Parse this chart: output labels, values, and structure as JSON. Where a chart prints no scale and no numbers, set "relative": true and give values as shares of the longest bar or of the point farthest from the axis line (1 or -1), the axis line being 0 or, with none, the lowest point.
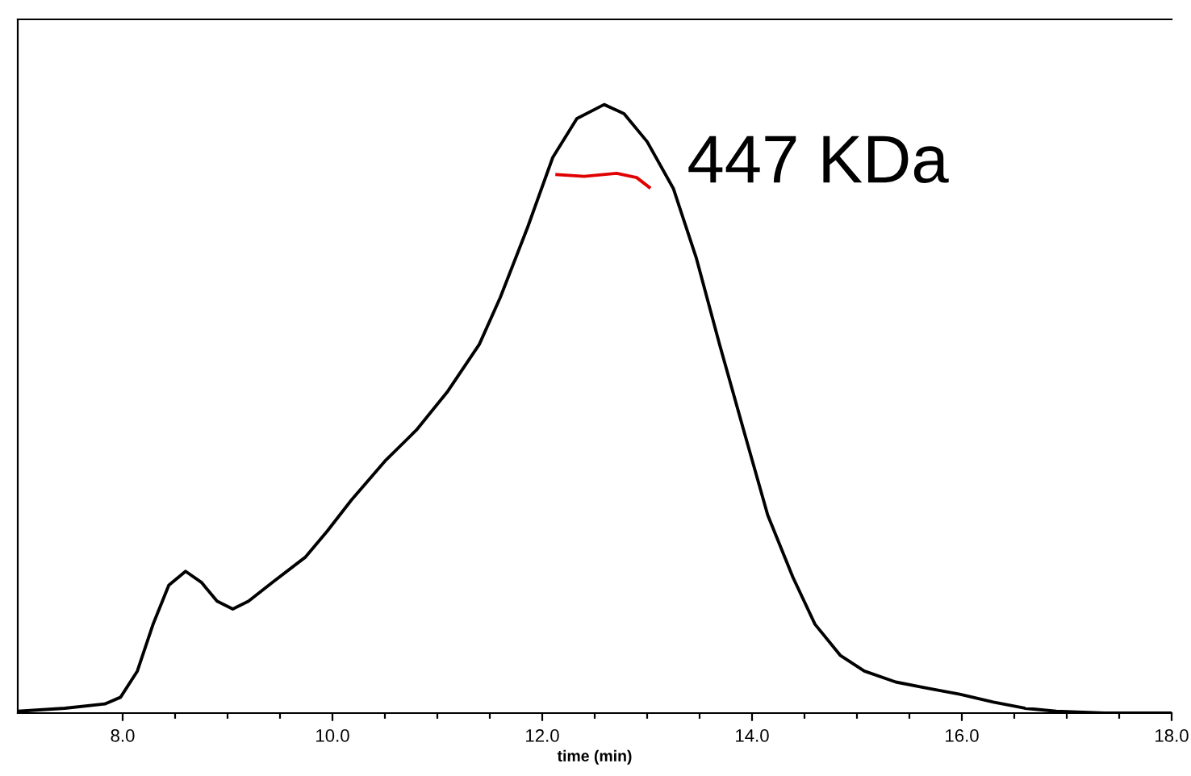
{
  "chart_data": {
    "type": "line",
    "relative": true,
    "xlabel": "time (min)",
    "xlim": [
      7.0,
      18.0
    ],
    "xticks": [
      {
        "value": 8.0,
        "label": "8.0"
      },
      {
        "value": 8.5,
        "label": null
      },
      {
        "value": 9.0,
        "label": null
      },
      {
        "value": 9.5,
        "label": null
      },
      {
        "value": 10.0,
        "label": "10.0"
      },
      {
        "value": 10.5,
        "label": null
      },
      {
        "value": 11.0,
        "label": null
      },
      {
        "value": 11.5,
        "label": null
      },
      {
        "value": 12.0,
        "label": "12.0"
      },
      {
        "value": 12.5,
        "label": null
      },
      {
        "value": 13.0,
        "label": null
      },
      {
        "value": 13.5,
        "label": null
      },
      {
        "value": 14.0,
        "label": "14.0"
      },
      {
        "value": 14.5,
        "label": null
      },
      {
        "value": 15.0,
        "label": null
      },
      {
        "value": 15.5,
        "label": null
      },
      {
        "value": 16.0,
        "label": "16.0"
      },
      {
        "value": 16.5,
        "label": null
      },
      {
        "value": 17.0,
        "label": null
      },
      {
        "value": 17.5,
        "label": null
      },
      {
        "value": 18.0,
        "label": "18.0"
      }
    ],
    "series": [
      {
        "color": "#000000",
        "x": [
          7.0,
          7.45,
          7.83,
          7.98,
          8.14,
          8.29,
          8.44,
          8.6,
          8.75,
          8.9,
          9.05,
          9.2,
          9.43,
          9.74,
          9.95,
          10.18,
          10.5,
          10.8,
          11.1,
          11.4,
          11.6,
          11.86,
          12.1,
          12.33,
          12.59,
          12.78,
          13.0,
          13.25,
          13.47,
          13.69,
          13.92,
          14.15,
          14.39,
          14.6,
          14.84,
          15.07,
          15.37,
          15.67,
          15.98,
          16.3,
          16.6,
          16.9,
          17.36,
          18.0
        ],
        "values": [
          0.003,
          0.008,
          0.015,
          0.026,
          0.069,
          0.146,
          0.21,
          0.233,
          0.215,
          0.184,
          0.171,
          0.184,
          0.215,
          0.256,
          0.299,
          0.35,
          0.414,
          0.465,
          0.529,
          0.606,
          0.683,
          0.798,
          0.913,
          0.977,
          1,
          0.985,
          0.939,
          0.862,
          0.747,
          0.606,
          0.465,
          0.325,
          0.223,
          0.146,
          0.095,
          0.069,
          0.051,
          0.041,
          0.031,
          0.018,
          0.008,
          0.003,
          0,
          0
        ]
      },
      {
        "color": "#e00000",
        "x": [
          12.14,
          12.4,
          12.71,
          12.9,
          13.02
        ],
        "values": [
          0.885,
          0.882,
          0.887,
          0.88,
          0.864
        ]
      }
    ],
    "annotations": [
      "447 KDa"
    ],
    "grid": false,
    "legend": false,
    "marker": "none",
    "line_style": "solid"
  }
}
